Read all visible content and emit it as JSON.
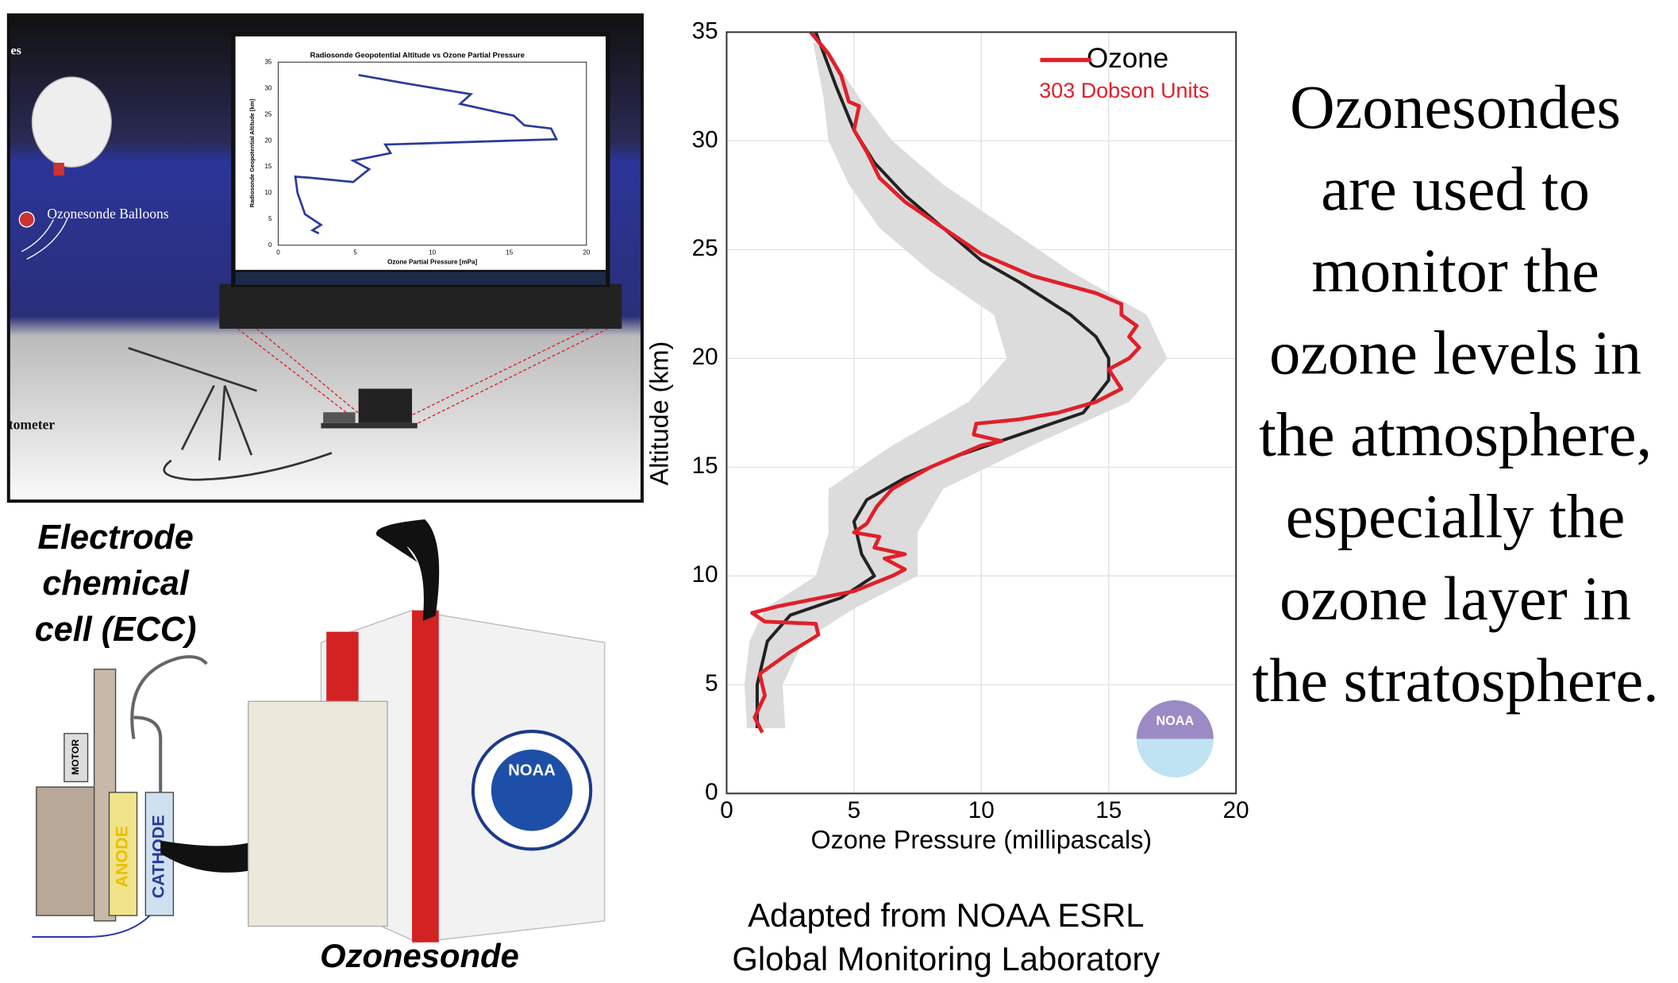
{
  "chart_data": {
    "type": "line",
    "xlabel": "Ozone Pressure (millipascals)",
    "ylabel": "Altitude (km)",
    "xlim": [
      0,
      20
    ],
    "xticks": [
      0,
      5,
      10,
      15,
      20
    ],
    "ylim": [
      0,
      35
    ],
    "yticks": [
      0,
      5,
      10,
      15,
      20,
      25,
      30,
      35
    ],
    "grid": true,
    "legend": "upper right",
    "legend_note": "303 Dobson Units",
    "band": {
      "color": "#dcdcdc",
      "y": [
        3,
        5,
        7,
        8.5,
        10,
        12,
        14,
        16,
        18,
        20,
        22,
        24,
        26,
        28,
        30,
        32,
        34.5
      ],
      "lower": [
        0.8,
        0.7,
        0.9,
        1.5,
        3.5,
        4,
        4,
        6.5,
        9.5,
        11,
        10.5,
        8,
        6,
        4.8,
        4,
        3.8,
        3.4
      ],
      "upper": [
        2.3,
        2.2,
        3,
        5,
        7.5,
        7.5,
        8.5,
        12,
        15.8,
        17.3,
        16.5,
        13.5,
        11,
        8.5,
        6.5,
        5.2,
        3.8
      ]
    },
    "series": [
      {
        "color": "#222222",
        "x": [
          1.2,
          1.2,
          1.6,
          2.5,
          4.5,
          5.8,
          5.3,
          5,
          5.5,
          7,
          9,
          11.5,
          14,
          15,
          15,
          14.5,
          13.5,
          11.5,
          10,
          8.5,
          7,
          5.8,
          5,
          4.3,
          3.5
        ],
        "values": [
          3,
          5,
          7,
          8.2,
          9,
          10,
          11,
          12.5,
          13.5,
          14.5,
          15.5,
          16.5,
          17.5,
          19,
          20,
          21,
          22,
          23.5,
          24.5,
          26,
          27.5,
          29,
          30.5,
          32.5,
          35
        ]
      },
      {
        "name": "Ozone",
        "color": "#e0202a",
        "x": [
          1.4,
          1.1,
          1.5,
          1.3,
          2.5,
          3.6,
          3.5,
          1.5,
          1,
          2,
          5,
          6.5,
          7,
          6.2,
          7,
          5.8,
          6,
          5,
          5.5,
          5.9,
          6.5,
          8,
          9,
          10,
          10.8,
          9.7,
          9.8,
          11.5,
          13,
          14.5,
          15.5,
          15,
          15.8,
          16.2,
          15.8,
          16.1,
          15.5,
          15.5,
          14.5,
          12,
          10,
          8.5,
          7,
          6,
          5.5,
          5,
          5.2,
          4.8,
          4.5,
          4,
          3.3
        ],
        "values": [
          2.8,
          3.5,
          4.5,
          5.5,
          6.5,
          7.3,
          7.8,
          7.9,
          8.3,
          8.6,
          9.3,
          10,
          10.3,
          10.8,
          11,
          11.3,
          11.8,
          12,
          12.4,
          13.2,
          14,
          15,
          15.5,
          16,
          16.2,
          16.5,
          17,
          17.2,
          17.5,
          18,
          18.6,
          19.5,
          20,
          20.5,
          21,
          21.5,
          22,
          22.5,
          23,
          23.8,
          24.8,
          26,
          27.2,
          28.3,
          29.5,
          30.5,
          31.6,
          31.8,
          33,
          34,
          35
        ]
      }
    ],
    "logo_text": "NOAA"
  },
  "description": [
    "Ozonesondes",
    "are used to",
    "monitor the",
    "ozone levels in",
    "the atmosphere,",
    "especially the",
    "ozone layer in",
    "the stratosphere."
  ],
  "caption": [
    "Adapted from NOAA ESRL",
    "Global Monitoring Laboratory"
  ],
  "scene": {
    "labels": [
      "es",
      "Ozonesonde Balloons",
      "tometer"
    ],
    "inset": {
      "title": "Radiosonde Geopotential Altitude vs Ozone Partial Pressure",
      "xlabel": "Ozone Partial Pressure [mPa]",
      "ylabel": "Radiosonde Geopotential Altitude [km]",
      "xticks": [
        "0",
        "5",
        "10",
        "15",
        "20"
      ],
      "yticks": [
        "0",
        "5",
        "10",
        "15",
        "20",
        "25",
        "30",
        "35"
      ]
    }
  },
  "ecc": {
    "title": [
      "Electrode",
      "chemical",
      "cell (ECC)"
    ],
    "parts": [
      "MOTOR",
      "ANODE",
      "CATHODE"
    ]
  },
  "package": {
    "label": "Ozonesonde",
    "logo": "NOAA"
  }
}
